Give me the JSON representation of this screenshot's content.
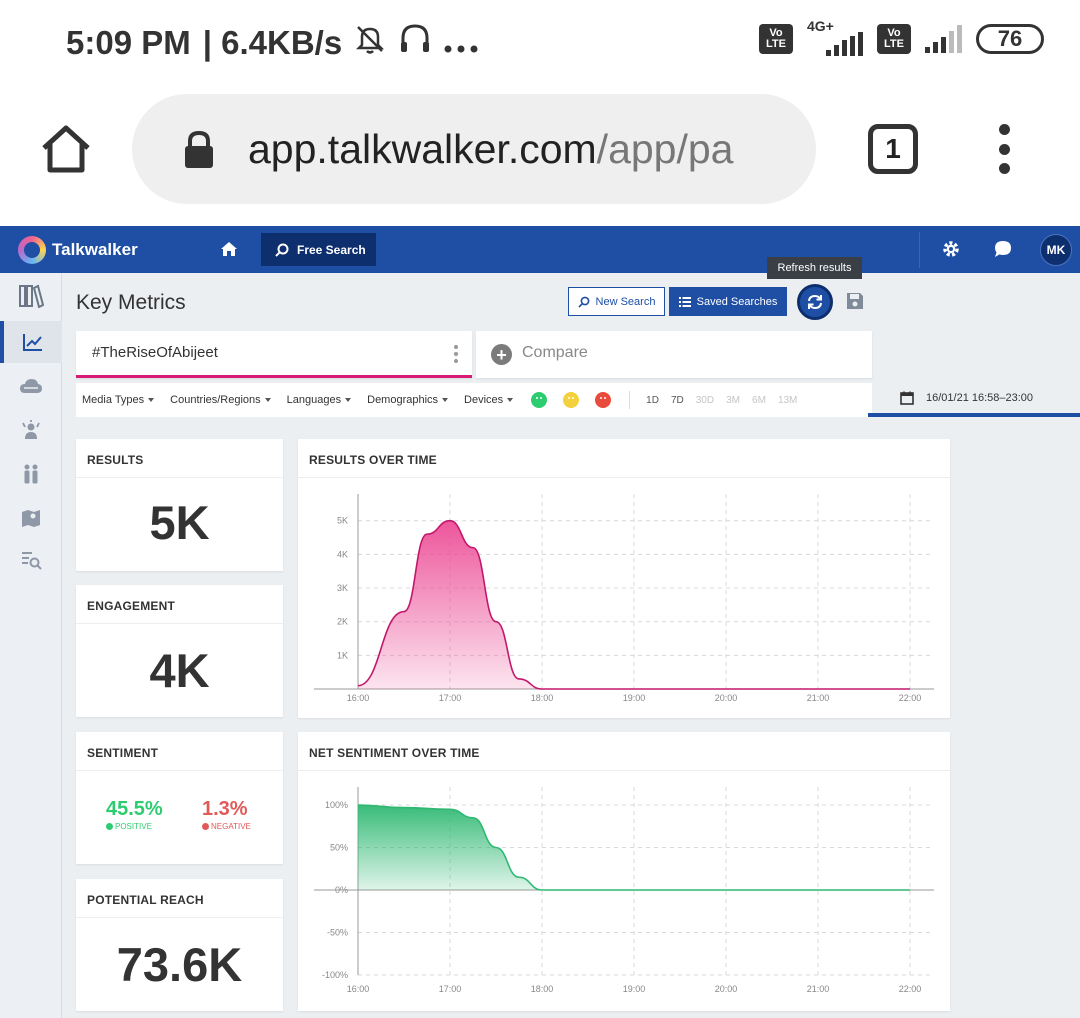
{
  "status": {
    "time": "5:09 PM",
    "speed": "| 6.4KB/s",
    "network": "4G+",
    "volte_line1": "Vo",
    "volte_line2": "LTE",
    "battery": "76"
  },
  "browser": {
    "url_host": "app.talkwalker.com",
    "url_path": "/app/pa",
    "tab_count": "1"
  },
  "app": {
    "logo": "Talkwalker",
    "free_search": "Free Search",
    "avatar": "MK"
  },
  "page": {
    "title": "Key Metrics",
    "new_search": "New Search",
    "saved_searches": "Saved Searches",
    "refresh_tooltip": "Refresh results",
    "query": "#TheRiseOfAbijeet",
    "compare": "Compare",
    "filters": [
      "Media Types",
      "Countries/Regions",
      "Languages",
      "Demographics",
      "Devices"
    ],
    "periods": [
      {
        "label": "1D",
        "dim": false
      },
      {
        "label": "7D",
        "dim": false
      },
      {
        "label": "30D",
        "dim": true
      },
      {
        "label": "3M",
        "dim": true
      },
      {
        "label": "6M",
        "dim": true
      },
      {
        "label": "13M",
        "dim": true
      }
    ],
    "date_range": "16/01/21 16:58–23:00"
  },
  "cards": {
    "results": {
      "title": "RESULTS",
      "value": "5K"
    },
    "engagement": {
      "title": "ENGAGEMENT",
      "value": "4K"
    },
    "sentiment": {
      "title": "SENTIMENT",
      "positive_value": "45.5%",
      "positive_label": "POSITIVE",
      "negative_value": "1.3%",
      "negative_label": "NEGATIVE"
    },
    "reach": {
      "title": "POTENTIAL REACH",
      "value": "73.6K"
    }
  },
  "colors": {
    "brand": "#1f4fa5",
    "results_line": "#c2186b",
    "results_fill": "#ec4d96",
    "sentiment_line": "#2eb872",
    "positive": "#2ecc71",
    "negative": "#e05a5a"
  },
  "chart_data": [
    {
      "type": "area",
      "title": "RESULTS OVER TIME",
      "x": [
        "16:00",
        "16:30",
        "16:45",
        "17:00",
        "17:15",
        "17:30",
        "17:45",
        "18:00",
        "19:00",
        "20:00",
        "21:00",
        "22:00"
      ],
      "series": [
        {
          "values": [
            100,
            2300,
            4600,
            5000,
            4200,
            2000,
            300,
            0,
            0,
            0,
            0,
            0
          ]
        }
      ],
      "xticks": [
        "16:00",
        "17:00",
        "18:00",
        "19:00",
        "20:00",
        "21:00",
        "22:00"
      ],
      "yticks": [
        "1K",
        "2K",
        "3K",
        "4K",
        "5K"
      ],
      "ylim": [
        0,
        5200
      ]
    },
    {
      "type": "area",
      "title": "NET SENTIMENT OVER TIME",
      "x": [
        "16:00",
        "16:30",
        "17:00",
        "17:15",
        "17:30",
        "17:45",
        "18:00",
        "19:00",
        "20:00",
        "21:00",
        "22:00"
      ],
      "series": [
        {
          "values": [
            100,
            97,
            95,
            85,
            50,
            15,
            0,
            0,
            0,
            0,
            0
          ]
        }
      ],
      "xticks": [
        "16:00",
        "17:00",
        "18:00",
        "19:00",
        "20:00",
        "21:00",
        "22:00"
      ],
      "yticks": [
        "100%",
        "50%",
        "0%",
        "-50%",
        "-100%"
      ],
      "ylim": [
        -100,
        100
      ]
    }
  ]
}
